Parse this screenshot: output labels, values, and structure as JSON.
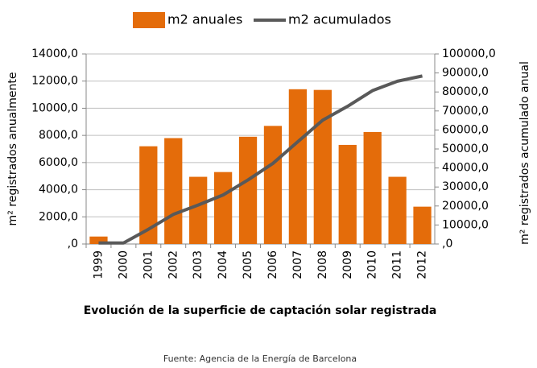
{
  "chart_data": {
    "type": "bar_line",
    "x_title": "Evolución de la superficie de captación solar registrada",
    "y_title": "m² registrados anualmente",
    "y2_title": "m² registrados acumulado anual",
    "source": "Fuente: Agencia de la Energía de Barcelona",
    "categories": [
      "1999",
      "2000",
      "2001",
      "2002",
      "2003",
      "2004",
      "2005",
      "2006",
      "2007",
      "2008",
      "2009",
      "2010",
      "2011",
      "2012"
    ],
    "series": [
      {
        "name": "m2 anuales",
        "type": "bar",
        "color": "#e46c0a",
        "values": [
          550,
          0,
          7200,
          7800,
          4950,
          5300,
          7900,
          8700,
          11400,
          11350,
          7300,
          8250,
          4950,
          2750
        ]
      },
      {
        "name": "m2 acumulados",
        "type": "line",
        "axis": "y2",
        "color": "#595959",
        "values": [
          550,
          550,
          7750,
          15550,
          20500,
          25800,
          33700,
          42400,
          53800,
          65150,
          72450,
          80700,
          85650,
          88400
        ]
      }
    ],
    "ylim": [
      0,
      14000
    ],
    "yticks": [
      {
        "value": 0,
        "label": ",0"
      },
      {
        "value": 2000,
        "label": "2000,0"
      },
      {
        "value": 4000,
        "label": "4000,0"
      },
      {
        "value": 6000,
        "label": "6000,0"
      },
      {
        "value": 8000,
        "label": "8000,0"
      },
      {
        "value": 10000,
        "label": "10000,0"
      },
      {
        "value": 12000,
        "label": "12000,0"
      },
      {
        "value": 14000,
        "label": "14000,0"
      }
    ],
    "y2lim": [
      0,
      100000
    ],
    "y2ticks": [
      {
        "value": 0,
        "label": ",0"
      },
      {
        "value": 10000,
        "label": "10000,0"
      },
      {
        "value": 20000,
        "label": "20000,0"
      },
      {
        "value": 30000,
        "label": "30000,0"
      },
      {
        "value": 40000,
        "label": "40000,0"
      },
      {
        "value": 50000,
        "label": "50000,0"
      },
      {
        "value": 60000,
        "label": "60000,0"
      },
      {
        "value": 70000,
        "label": "70000,0"
      },
      {
        "value": 80000,
        "label": "80000,0"
      },
      {
        "value": 90000,
        "label": "90000,0"
      },
      {
        "value": 100000,
        "label": "100000,0"
      }
    ],
    "grid": true
  }
}
